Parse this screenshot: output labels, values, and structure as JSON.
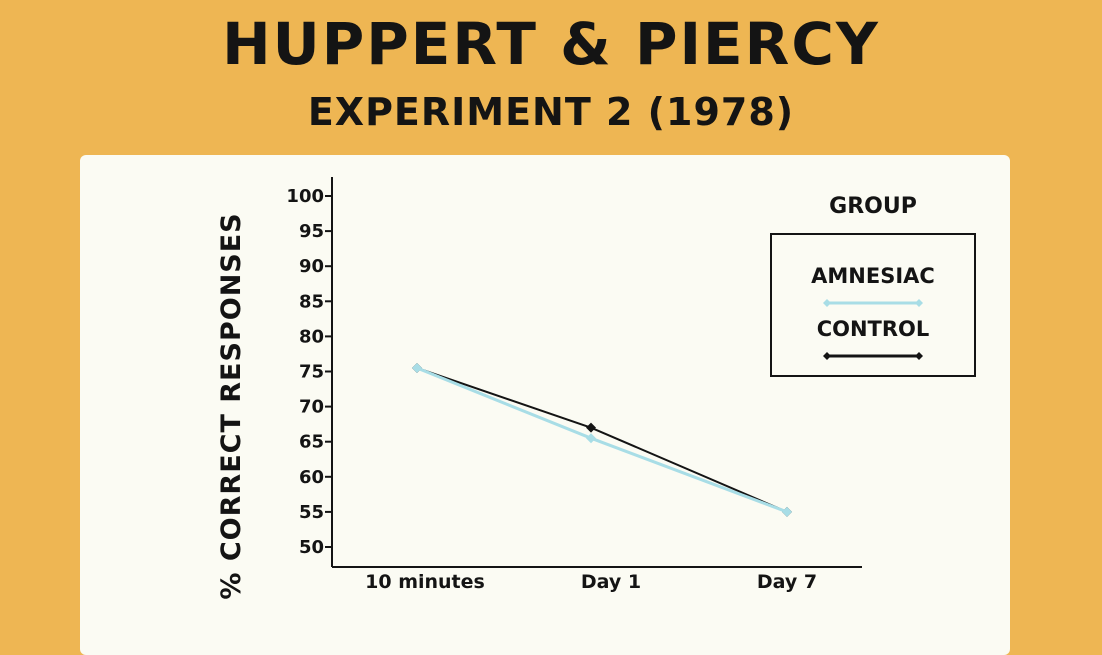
{
  "header": {
    "title": "HUPPERT & PIERCY",
    "subtitle": "EXPERIMENT 2 (1978)"
  },
  "colors": {
    "background": "#eeb653",
    "card": "#fbfbf3",
    "text": "#141414",
    "amnesiac": "#a8dde6",
    "control": "#141414"
  },
  "chart_data": {
    "type": "line",
    "title": "",
    "xlabel": "",
    "ylabel": "% CORRECT RESPONSES",
    "categories": [
      "10 minutes",
      "Day 1",
      "Day 7"
    ],
    "ylim": [
      50,
      100
    ],
    "yticks": [
      50,
      55,
      60,
      65,
      70,
      75,
      80,
      85,
      90,
      95,
      100
    ],
    "legend_title": "GROUP",
    "legend_position": "top-right",
    "grid": false,
    "series": [
      {
        "name": "AMNESIAC",
        "color": "#a8dde6",
        "values": [
          75.5,
          65.5,
          55
        ]
      },
      {
        "name": "CONTROL",
        "color": "#141414",
        "values": [
          75.5,
          67,
          55
        ]
      }
    ]
  }
}
